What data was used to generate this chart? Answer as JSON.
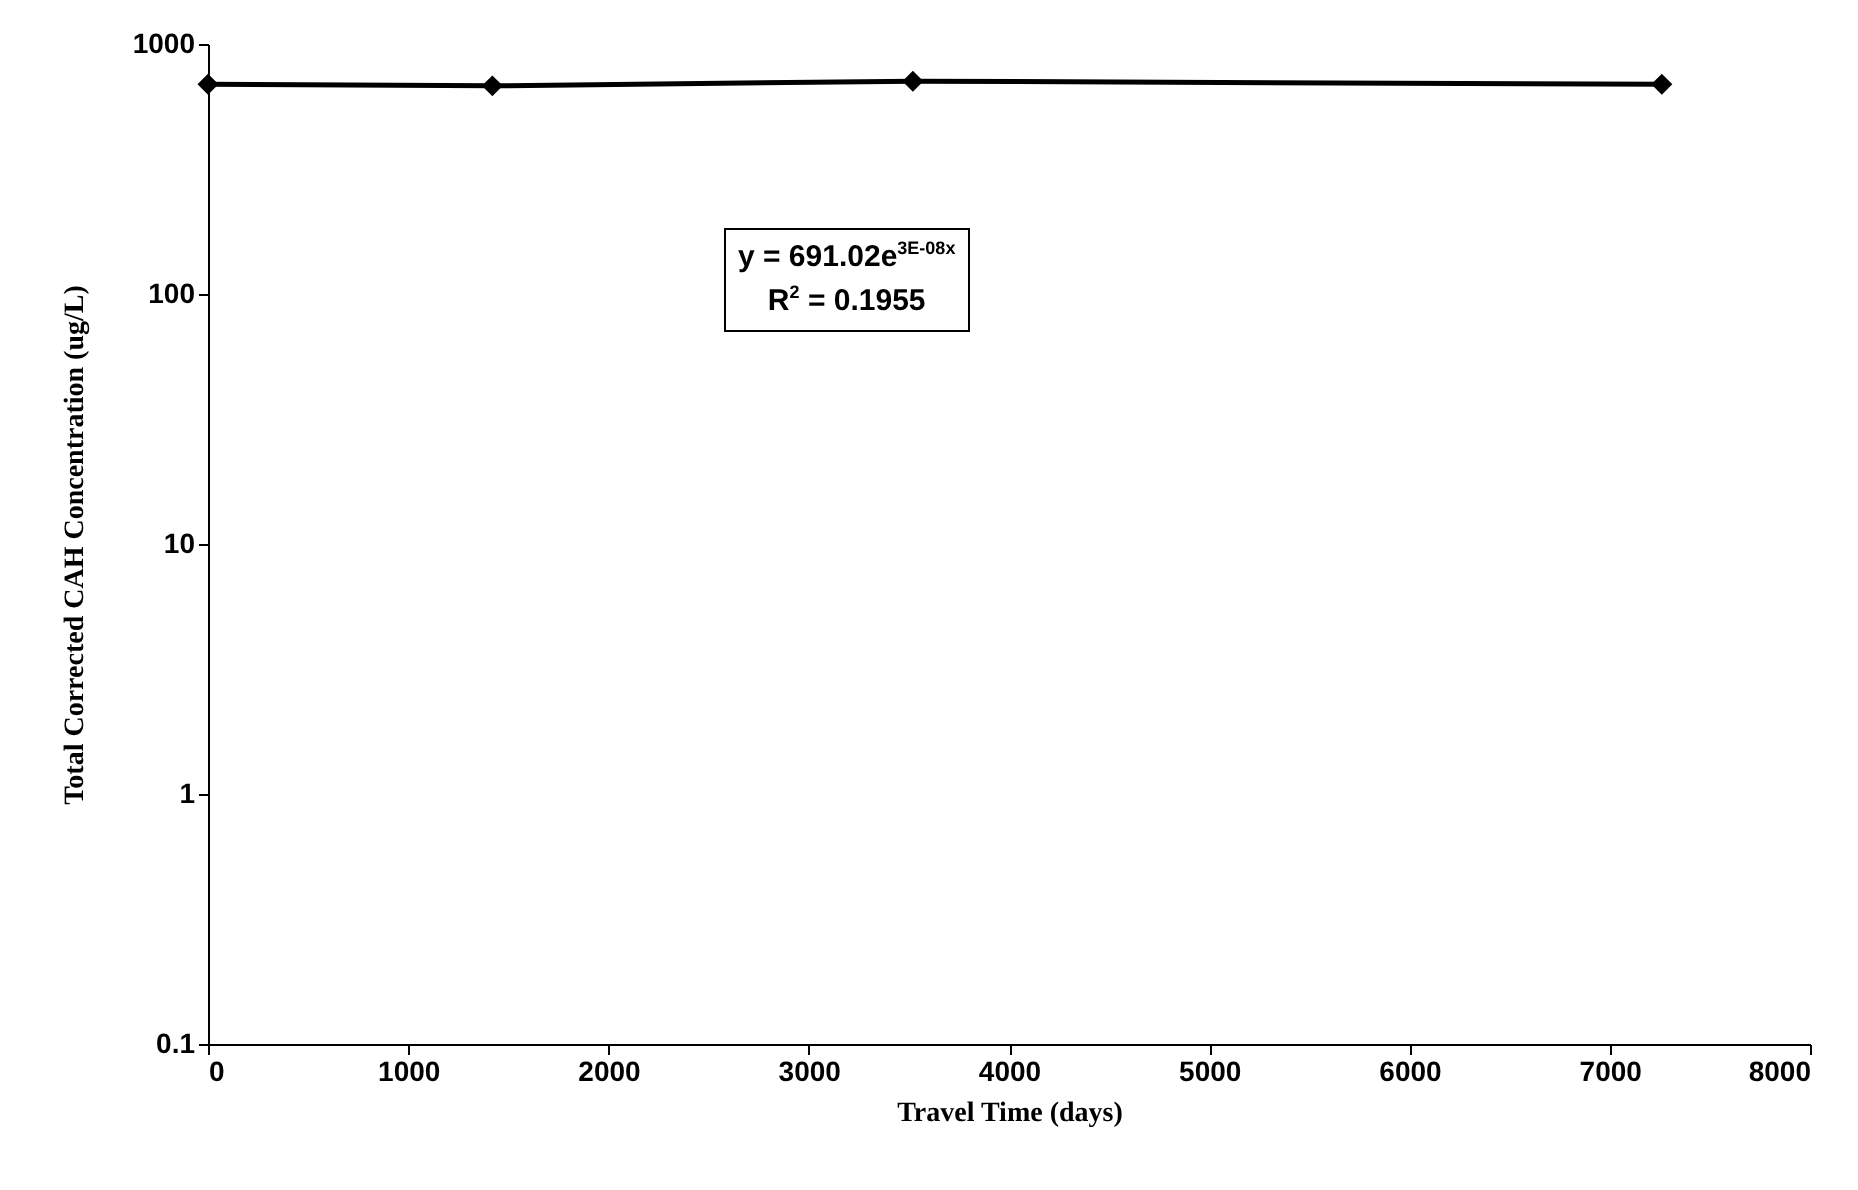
{
  "chart_data": {
    "type": "line",
    "xlabel": "Travel Time (days)",
    "ylabel": "Total Corrected CAH Concentration (ug/L)",
    "x": [
      0,
      1420,
      3520,
      7260
    ],
    "series": [
      {
        "color": "#000000",
        "values": [
          690,
          680,
          710,
          690
        ]
      }
    ],
    "xlim": [
      0,
      8000
    ],
    "xticks": [
      0,
      1000,
      2000,
      3000,
      4000,
      5000,
      6000,
      7000,
      8000
    ],
    "ylim": [
      0.1,
      1000
    ],
    "yticks": [
      0.1,
      1,
      10,
      100,
      1000
    ],
    "log": true,
    "grid": false,
    "marker": "diamond",
    "line_style": "solid",
    "annotations": [
      "y = 691.02e$^{3E-08x}$",
      "R$^{2}$ = 0.1955"
    ]
  }
}
